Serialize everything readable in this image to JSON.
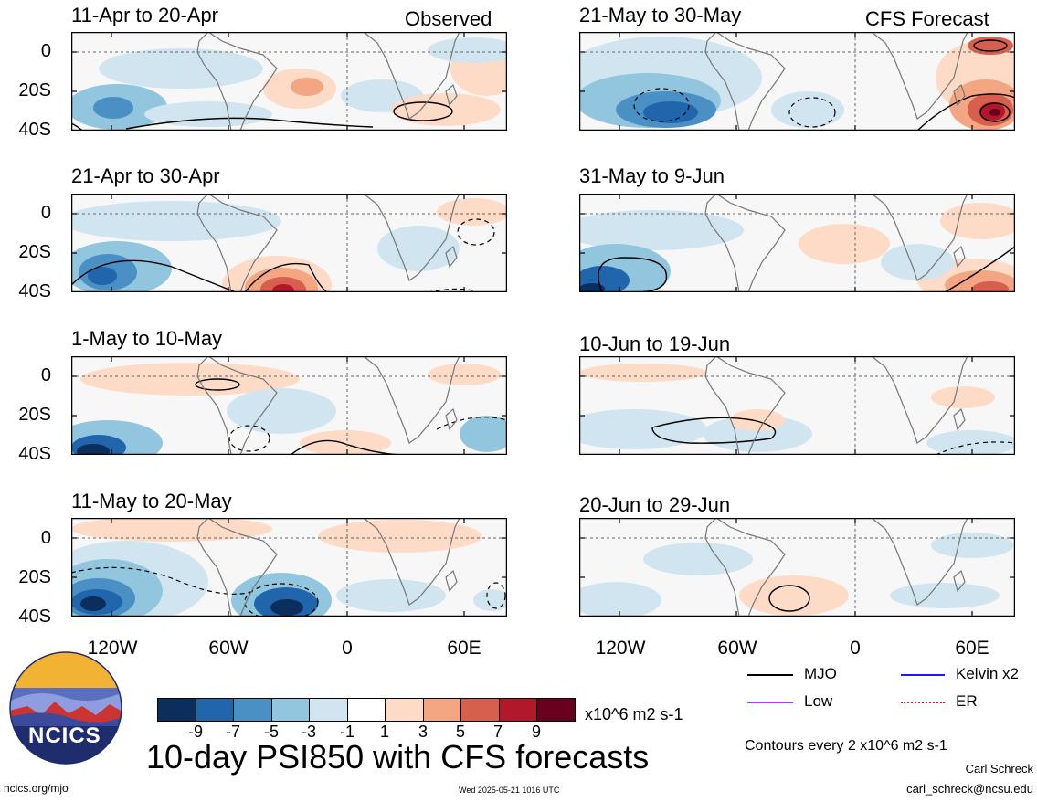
{
  "panels_left": [
    {
      "title": "11-Apr to 20-Apr",
      "corner": "Observed"
    },
    {
      "title": "21-Apr to 30-Apr",
      "corner": ""
    },
    {
      "title": "1-May to 10-May",
      "corner": ""
    },
    {
      "title": "11-May to 20-May",
      "corner": ""
    }
  ],
  "panels_right": [
    {
      "title": "21-May to 30-May",
      "corner": "CFS Forecast"
    },
    {
      "title": "31-May to 9-Jun",
      "corner": ""
    },
    {
      "title": "10-Jun to 19-Jun",
      "corner": ""
    },
    {
      "title": "20-Jun to 29-Jun",
      "corner": ""
    }
  ],
  "lat_labels": [
    "0",
    "20S",
    "40S"
  ],
  "lon_labels": [
    "120W",
    "60W",
    "0",
    "60E"
  ],
  "colorbar": {
    "ticks": [
      "-9",
      "-7",
      "-5",
      "-3",
      "-1",
      "1",
      "3",
      "5",
      "7",
      "9"
    ],
    "colors": [
      "#0b2e5c",
      "#2166ac",
      "#4a90c4",
      "#92c5de",
      "#d1e5f0",
      "#ffffff",
      "#fddbc7",
      "#f4a582",
      "#d6604d",
      "#b2182b",
      "#67001f"
    ],
    "units": "x10^6 m2 s-1"
  },
  "legend": [
    {
      "label": "MJO",
      "color": "#000000",
      "style": "solid"
    },
    {
      "label": "Kelvin x2",
      "color": "#1a1aff",
      "style": "solid"
    },
    {
      "label": "Low",
      "color": "#a040e0",
      "style": "solid"
    },
    {
      "label": "ER",
      "color": "#e02020",
      "style": "dotted"
    }
  ],
  "contour_note": "Contours every 2 x10^6 m2 s-1",
  "main_title": "10-day PSI850 with CFS forecasts",
  "logo_text": "NCICS",
  "footer_left": "ncics.org/mjo",
  "footer_center": "Wed 2025-05-21 1016 UTC",
  "author_name": "Carl Schreck",
  "author_email": "carl_schreck@ncsu.edu"
}
